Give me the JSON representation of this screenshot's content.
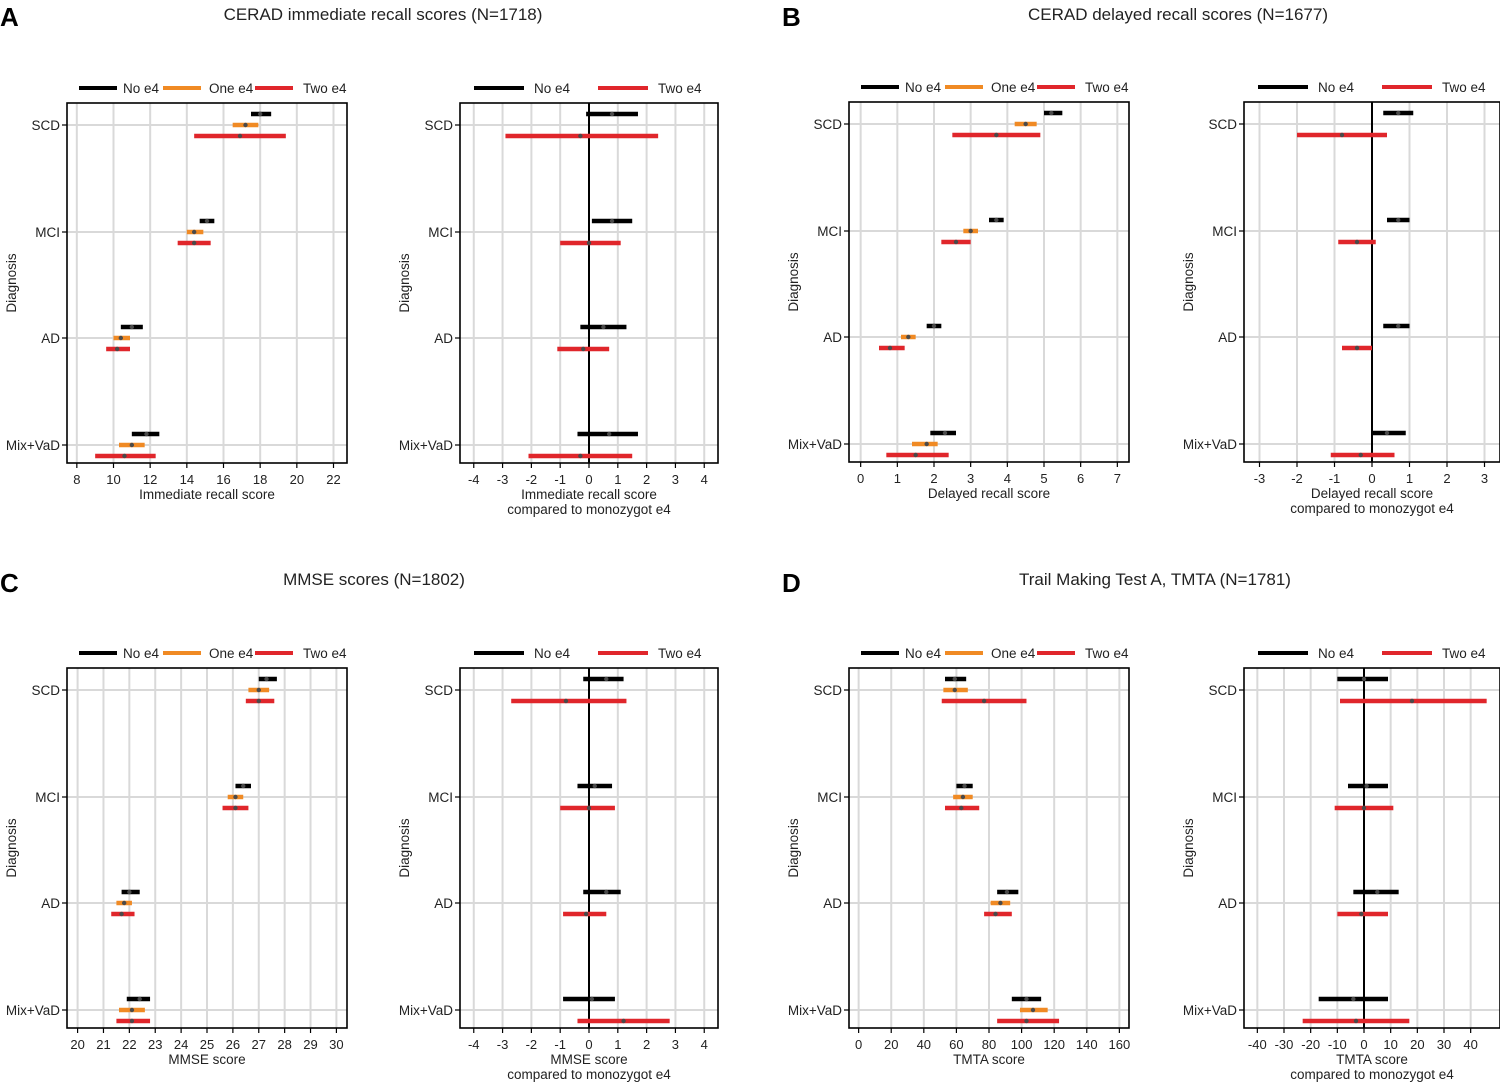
{
  "colors": {
    "black": "#000000",
    "orange": "#F08A24",
    "red": "#E0262B",
    "grid": "#D9D9D9"
  },
  "panels": [
    {
      "letter": "A",
      "title": "CERAD immediate recall scores (N=1718)"
    },
    {
      "letter": "B",
      "title": "CERAD delayed recall scores (N=1677)"
    },
    {
      "letter": "C",
      "title": "MMSE scores (N=1802)"
    },
    {
      "letter": "D",
      "title": "Trail Making Test A, TMTA (N=1781)"
    }
  ],
  "chart_data": [
    {
      "panel": "A",
      "type": "forest",
      "side": "left",
      "categories": [
        "SCD",
        "MCI",
        "AD",
        "Mix+VaD"
      ],
      "ylabel": "Diagnosis",
      "xlabel": [
        "Immediate recall score"
      ],
      "xlim": [
        7.9,
        22.3
      ],
      "xticks": [
        8,
        10,
        12,
        14,
        16,
        18,
        20,
        22
      ],
      "series": [
        {
          "name": "No e4",
          "color": "black",
          "values": [
            {
              "est": 18.0,
              "lo": 17.5,
              "hi": 18.6
            },
            {
              "est": 15.1,
              "lo": 14.7,
              "hi": 15.5
            },
            {
              "est": 11.0,
              "lo": 10.4,
              "hi": 11.6
            },
            {
              "est": 11.8,
              "lo": 11.0,
              "hi": 12.5
            }
          ]
        },
        {
          "name": "One e4",
          "color": "orange",
          "values": [
            {
              "est": 17.2,
              "lo": 16.5,
              "hi": 17.9
            },
            {
              "est": 14.4,
              "lo": 14.0,
              "hi": 14.9
            },
            {
              "est": 10.4,
              "lo": 10.0,
              "hi": 10.9
            },
            {
              "est": 11.0,
              "lo": 10.3,
              "hi": 11.7
            }
          ]
        },
        {
          "name": "Two e4",
          "color": "red",
          "values": [
            {
              "est": 16.9,
              "lo": 14.4,
              "hi": 19.4
            },
            {
              "est": 14.4,
              "lo": 13.5,
              "hi": 15.3
            },
            {
              "est": 10.2,
              "lo": 9.6,
              "hi": 10.9
            },
            {
              "est": 10.6,
              "lo": 9.0,
              "hi": 12.3
            }
          ]
        }
      ]
    },
    {
      "panel": "A",
      "type": "forest",
      "side": "right",
      "categories": [
        "SCD",
        "MCI",
        "AD",
        "Mix+VaD"
      ],
      "ylabel": "Diagnosis",
      "xlabel": [
        "Immediate recall score",
        "compared to monozygot e4"
      ],
      "xlim": [
        -4.2,
        4.2
      ],
      "xticks": [
        -4,
        -3,
        -2,
        -1,
        0,
        1,
        2,
        3,
        4
      ],
      "refline": 0,
      "series": [
        {
          "name": "No e4",
          "color": "black",
          "values": [
            {
              "est": 0.8,
              "lo": -0.1,
              "hi": 1.7
            },
            {
              "est": 0.8,
              "lo": 0.1,
              "hi": 1.5
            },
            {
              "est": 0.5,
              "lo": -0.3,
              "hi": 1.3
            },
            {
              "est": 0.7,
              "lo": -0.4,
              "hi": 1.7
            }
          ]
        },
        {
          "name": "Two e4",
          "color": "red",
          "values": [
            {
              "est": -0.3,
              "lo": -2.9,
              "hi": 2.4
            },
            {
              "est": 0.0,
              "lo": -1.0,
              "hi": 1.1
            },
            {
              "est": -0.2,
              "lo": -1.1,
              "hi": 0.7
            },
            {
              "est": -0.3,
              "lo": -2.1,
              "hi": 1.5
            }
          ]
        }
      ]
    },
    {
      "panel": "B",
      "type": "forest",
      "side": "left",
      "categories": [
        "SCD",
        "MCI",
        "AD",
        "Mix+VaD"
      ],
      "ylabel": "Diagnosis",
      "xlabel": [
        "Delayed recall score"
      ],
      "xlim": [
        -0.1,
        7.1
      ],
      "xticks": [
        0,
        1,
        2,
        3,
        4,
        5,
        6,
        7
      ],
      "series": [
        {
          "name": "No e4",
          "color": "black",
          "values": [
            {
              "est": 5.2,
              "lo": 5.0,
              "hi": 5.5
            },
            {
              "est": 3.7,
              "lo": 3.5,
              "hi": 3.9
            },
            {
              "est": 2.0,
              "lo": 1.8,
              "hi": 2.2
            },
            {
              "est": 2.3,
              "lo": 1.9,
              "hi": 2.6
            }
          ]
        },
        {
          "name": "One e4",
          "color": "orange",
          "values": [
            {
              "est": 4.5,
              "lo": 4.2,
              "hi": 4.8
            },
            {
              "est": 3.0,
              "lo": 2.8,
              "hi": 3.2
            },
            {
              "est": 1.3,
              "lo": 1.1,
              "hi": 1.5
            },
            {
              "est": 1.8,
              "lo": 1.4,
              "hi": 2.1
            }
          ]
        },
        {
          "name": "Two e4",
          "color": "red",
          "values": [
            {
              "est": 3.7,
              "lo": 2.5,
              "hi": 4.9
            },
            {
              "est": 2.6,
              "lo": 2.2,
              "hi": 3.0
            },
            {
              "est": 0.8,
              "lo": 0.5,
              "hi": 1.2
            },
            {
              "est": 1.5,
              "lo": 0.7,
              "hi": 2.4
            }
          ]
        }
      ]
    },
    {
      "panel": "B",
      "type": "forest",
      "side": "right",
      "categories": [
        "SCD",
        "MCI",
        "AD",
        "Mix+VaD"
      ],
      "ylabel": "Diagnosis",
      "xlabel": [
        "Delayed recall score",
        "compared to monozygot e4"
      ],
      "xlim": [
        -3.2,
        3.2
      ],
      "xticks": [
        -3,
        -2,
        -1,
        0,
        1,
        2,
        3
      ],
      "refline": 0,
      "series": [
        {
          "name": "No e4",
          "color": "black",
          "values": [
            {
              "est": 0.7,
              "lo": 0.3,
              "hi": 1.1
            },
            {
              "est": 0.7,
              "lo": 0.4,
              "hi": 1.0
            },
            {
              "est": 0.7,
              "lo": 0.3,
              "hi": 1.0
            },
            {
              "est": 0.4,
              "lo": 0.0,
              "hi": 0.9
            }
          ]
        },
        {
          "name": "Two e4",
          "color": "red",
          "values": [
            {
              "est": -0.8,
              "lo": -2.0,
              "hi": 0.4
            },
            {
              "est": -0.4,
              "lo": -0.9,
              "hi": 0.1
            },
            {
              "est": -0.4,
              "lo": -0.8,
              "hi": 0.0
            },
            {
              "est": -0.3,
              "lo": -1.1,
              "hi": 0.6
            }
          ]
        }
      ]
    },
    {
      "panel": "C",
      "type": "forest",
      "side": "left",
      "categories": [
        "SCD",
        "MCI",
        "AD",
        "Mix+VaD"
      ],
      "ylabel": "Diagnosis",
      "xlabel": [
        "MMSE score"
      ],
      "xlim": [
        19.9,
        30.1
      ],
      "xticks": [
        20,
        21,
        22,
        23,
        24,
        25,
        26,
        27,
        28,
        29,
        30
      ],
      "series": [
        {
          "name": "No e4",
          "color": "black",
          "values": [
            {
              "est": 27.3,
              "lo": 27.0,
              "hi": 27.7
            },
            {
              "est": 26.4,
              "lo": 26.1,
              "hi": 26.7
            },
            {
              "est": 22.0,
              "lo": 21.7,
              "hi": 22.4
            },
            {
              "est": 22.4,
              "lo": 21.9,
              "hi": 22.8
            }
          ]
        },
        {
          "name": "One e4",
          "color": "orange",
          "values": [
            {
              "est": 27.0,
              "lo": 26.6,
              "hi": 27.4
            },
            {
              "est": 26.1,
              "lo": 25.8,
              "hi": 26.4
            },
            {
              "est": 21.8,
              "lo": 21.5,
              "hi": 22.1
            },
            {
              "est": 22.1,
              "lo": 21.6,
              "hi": 22.6
            }
          ]
        },
        {
          "name": "Two e4",
          "color": "red",
          "values": [
            {
              "est": 27.0,
              "lo": 26.5,
              "hi": 27.6
            },
            {
              "est": 26.1,
              "lo": 25.6,
              "hi": 26.6
            },
            {
              "est": 21.7,
              "lo": 21.3,
              "hi": 22.2
            },
            {
              "est": 22.1,
              "lo": 21.5,
              "hi": 22.8
            }
          ]
        }
      ]
    },
    {
      "panel": "C",
      "type": "forest",
      "side": "right",
      "categories": [
        "SCD",
        "MCI",
        "AD",
        "Mix+VaD"
      ],
      "ylabel": "Diagnosis",
      "xlabel": [
        "MMSE score",
        "compared to monozygot e4"
      ],
      "xlim": [
        -4.2,
        4.2
      ],
      "xticks": [
        -4,
        -3,
        -2,
        -1,
        0,
        1,
        2,
        3,
        4
      ],
      "refline": 0,
      "series": [
        {
          "name": "No e4",
          "color": "black",
          "values": [
            {
              "est": 0.6,
              "lo": -0.2,
              "hi": 1.2
            },
            {
              "est": 0.2,
              "lo": -0.4,
              "hi": 0.8
            },
            {
              "est": 0.6,
              "lo": -0.2,
              "hi": 1.1
            },
            {
              "est": 0.1,
              "lo": -0.9,
              "hi": 0.9
            }
          ]
        },
        {
          "name": "Two e4",
          "color": "red",
          "values": [
            {
              "est": -0.8,
              "lo": -2.7,
              "hi": 1.3
            },
            {
              "est": 0.0,
              "lo": -1.0,
              "hi": 0.9
            },
            {
              "est": -0.1,
              "lo": -0.9,
              "hi": 0.6
            },
            {
              "est": 1.2,
              "lo": -0.4,
              "hi": 2.8
            }
          ]
        }
      ]
    },
    {
      "panel": "D",
      "type": "forest",
      "side": "left",
      "categories": [
        "SCD",
        "MCI",
        "AD",
        "Mix+VaD"
      ],
      "ylabel": "Diagnosis",
      "xlabel": [
        "TMTA score"
      ],
      "xlim": [
        -1,
        161
      ],
      "xticks": [
        0,
        20,
        40,
        60,
        80,
        100,
        120,
        140,
        160
      ],
      "series": [
        {
          "name": "No e4",
          "color": "black",
          "values": [
            {
              "est": 59,
              "lo": 53,
              "hi": 66
            },
            {
              "est": 65,
              "lo": 60,
              "hi": 70
            },
            {
              "est": 91,
              "lo": 85,
              "hi": 98
            },
            {
              "est": 103,
              "lo": 94,
              "hi": 112
            }
          ]
        },
        {
          "name": "One e4",
          "color": "orange",
          "values": [
            {
              "est": 59,
              "lo": 52,
              "hi": 67
            },
            {
              "est": 64,
              "lo": 58,
              "hi": 70
            },
            {
              "est": 87,
              "lo": 81,
              "hi": 93
            },
            {
              "est": 107,
              "lo": 99,
              "hi": 116
            }
          ]
        },
        {
          "name": "Two e4",
          "color": "red",
          "values": [
            {
              "est": 77,
              "lo": 51,
              "hi": 103
            },
            {
              "est": 63,
              "lo": 53,
              "hi": 74
            },
            {
              "est": 84,
              "lo": 77,
              "hi": 94
            },
            {
              "est": 103,
              "lo": 85,
              "hi": 123
            }
          ]
        }
      ]
    },
    {
      "panel": "D",
      "type": "forest",
      "side": "right",
      "categories": [
        "SCD",
        "MCI",
        "AD",
        "Mix+VaD"
      ],
      "ylabel": "Diagnosis",
      "xlabel": [
        "TMTA score",
        "compared to monozygot e4"
      ],
      "xlim": [
        -42,
        48
      ],
      "xticks": [
        -40,
        -30,
        -20,
        -10,
        0,
        10,
        20,
        30,
        40
      ],
      "refline": 0,
      "series": [
        {
          "name": "No e4",
          "color": "black",
          "values": [
            {
              "est": 0,
              "lo": -10,
              "hi": 9
            },
            {
              "est": 1,
              "lo": -6,
              "hi": 9
            },
            {
              "est": 5,
              "lo": -4,
              "hi": 13
            },
            {
              "est": -4,
              "lo": -17,
              "hi": 9
            }
          ]
        },
        {
          "name": "Two e4",
          "color": "red",
          "values": [
            {
              "est": 18,
              "lo": -9,
              "hi": 46
            },
            {
              "est": 0,
              "lo": -11,
              "hi": 11
            },
            {
              "est": -1,
              "lo": -10,
              "hi": 9
            },
            {
              "est": -3,
              "lo": -23,
              "hi": 17
            }
          ]
        }
      ]
    }
  ]
}
